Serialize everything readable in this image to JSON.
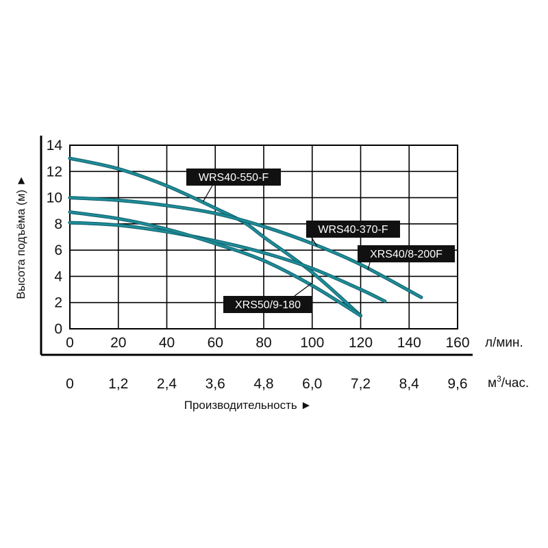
{
  "chart_data": {
    "type": "line",
    "xlabel": "Производительность ►",
    "ylabel": "Высота подъёма (м) ►",
    "x_unit": "л/мин.",
    "x2_unit_base": "м",
    "x2_unit_sup": "3",
    "x2_unit_suffix": "/час.",
    "xlim": [
      0,
      160
    ],
    "ylim": [
      0,
      14
    ],
    "x_ticks": [
      "0",
      "20",
      "40",
      "60",
      "80",
      "100",
      "120",
      "140",
      "160"
    ],
    "x2_ticks": [
      "0",
      "1,2",
      "2,4",
      "3,6",
      "4,8",
      "6,0",
      "7,2",
      "8,4",
      "9,6"
    ],
    "y_ticks": [
      "0",
      "2",
      "4",
      "6",
      "8",
      "10",
      "12",
      "14"
    ],
    "grid": true,
    "line_color": "#1f8c99",
    "series": [
      {
        "name": "WRS40-550-F",
        "x": [
          0,
          20,
          40,
          60,
          72,
          80,
          100,
          120
        ],
        "y": [
          13.0,
          12.2,
          10.9,
          9.2,
          8.1,
          7.0,
          4.3,
          1.0
        ]
      },
      {
        "name": "WRS40-370-F",
        "x": [
          0,
          20,
          40,
          60,
          80,
          100,
          120,
          145
        ],
        "y": [
          10.0,
          9.8,
          9.4,
          8.8,
          7.8,
          6.5,
          4.9,
          2.4
        ]
      },
      {
        "name": "XRS40/8-200F",
        "x": [
          0,
          20,
          40,
          60,
          80,
          100,
          120,
          130
        ],
        "y": [
          8.1,
          7.9,
          7.4,
          6.7,
          5.8,
          4.6,
          3.0,
          2.1
        ]
      },
      {
        "name": "XRS50/9-180",
        "x": [
          0,
          20,
          40,
          60,
          80,
          100,
          120
        ],
        "y": [
          8.9,
          8.4,
          7.6,
          6.5,
          5.2,
          3.3,
          1.0
        ]
      }
    ],
    "annotations": [
      {
        "series": 0,
        "text": "WRS40-550-F",
        "point": [
          55,
          9.7
        ]
      },
      {
        "series": 1,
        "text": "WRS40-370-F",
        "point": [
          102,
          6.3
        ]
      },
      {
        "series": 2,
        "text": "XRS40/8-200F",
        "point": [
          123,
          4.5
        ]
      },
      {
        "series": 3,
        "text": "XRS50/9-180",
        "point": [
          100,
          3.5
        ]
      }
    ]
  }
}
